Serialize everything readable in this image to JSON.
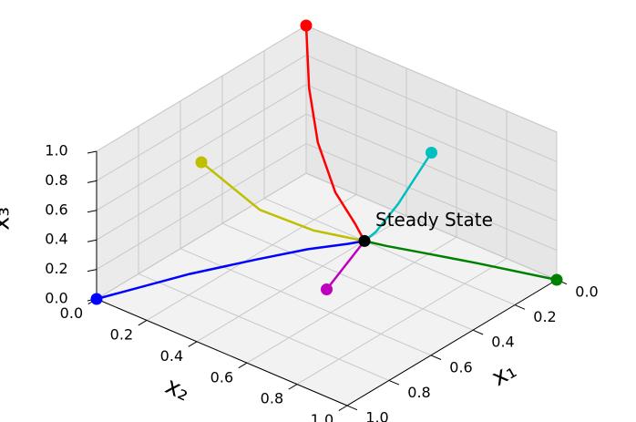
{
  "chart_data": {
    "type": "line3d",
    "xlabel": "x₁",
    "ylabel": "x₂",
    "zlabel": "x₃",
    "xlim": [
      0,
      1
    ],
    "ylim": [
      0,
      1
    ],
    "zlim": [
      0,
      1
    ],
    "xticks": [
      {
        "value": 0,
        "label": "0.0"
      },
      {
        "value": 0.2,
        "label": "0.2"
      },
      {
        "value": 0.4,
        "label": "0.4"
      },
      {
        "value": 0.6,
        "label": "0.6"
      },
      {
        "value": 0.8,
        "label": "0.8"
      },
      {
        "value": 1,
        "label": "1.0"
      }
    ],
    "yticks": [
      {
        "value": 0,
        "label": "0.0"
      },
      {
        "value": 0.2,
        "label": "0.2"
      },
      {
        "value": 0.4,
        "label": "0.4"
      },
      {
        "value": 0.6,
        "label": "0.6"
      },
      {
        "value": 0.8,
        "label": "0.8"
      },
      {
        "value": 1,
        "label": "1.0"
      }
    ],
    "zticks": [
      {
        "value": 0,
        "label": "0.0"
      },
      {
        "value": 0.2,
        "label": "0.2"
      },
      {
        "value": 0.4,
        "label": "0.4"
      },
      {
        "value": 0.6,
        "label": "0.6"
      },
      {
        "value": 0.8,
        "label": "0.8"
      },
      {
        "value": 1,
        "label": "1.0"
      }
    ],
    "grid": true,
    "series": [
      {
        "color": "#ff0000",
        "x": [
          0,
          0.01,
          0.04,
          0.1,
          0.16,
          0.2
        ],
        "y": [
          0,
          0.02,
          0.08,
          0.2,
          0.33,
          0.4
        ],
        "z": [
          1,
          0.6,
          0.3,
          0.1,
          0.03,
          0
        ]
      },
      {
        "color": "#0000ff",
        "x": [
          1,
          0.7,
          0.5,
          0.35,
          0.25,
          0.2
        ],
        "y": [
          0,
          0.12,
          0.22,
          0.3,
          0.37,
          0.4
        ],
        "z": [
          0,
          0,
          0,
          0,
          0,
          0
        ]
      },
      {
        "color": "#008000",
        "x": [
          0,
          0.08,
          0.14,
          0.18,
          0.2
        ],
        "y": [
          1,
          0.75,
          0.58,
          0.47,
          0.4
        ],
        "z": [
          0,
          0,
          0,
          0,
          0
        ]
      },
      {
        "color": "#bfbf00",
        "x": [
          0.5,
          0.4,
          0.3,
          0.2
        ],
        "y": [
          0,
          0.15,
          0.28,
          0.4
        ],
        "z": [
          0.5,
          0.2,
          0.07,
          0
        ]
      },
      {
        "color": "#00bfbf",
        "x": [
          0,
          0.1,
          0.17,
          0.2
        ],
        "y": [
          0.5,
          0.45,
          0.42,
          0.4
        ],
        "z": [
          0.5,
          0.2,
          0.05,
          0
        ]
      },
      {
        "color": "#bf00bf",
        "x": [
          0.5,
          0.35,
          0.2
        ],
        "y": [
          0.5,
          0.45,
          0.4
        ],
        "z": [
          0,
          0,
          0
        ]
      }
    ],
    "annotation": {
      "text": "Steady State",
      "x": 0.2,
      "y": 0.4,
      "z": 0,
      "color": "#000000"
    }
  }
}
